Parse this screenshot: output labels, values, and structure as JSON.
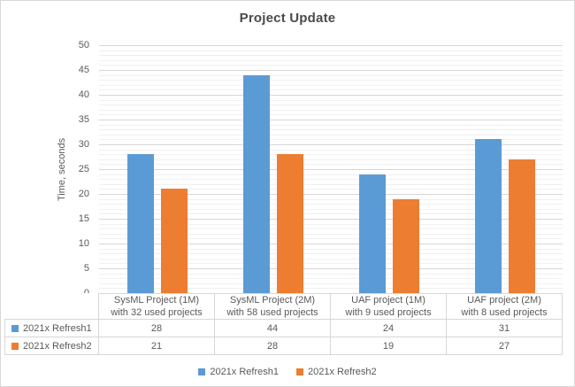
{
  "chart_data": {
    "type": "bar",
    "title": "Project Update",
    "ylabel": "Time, seconds",
    "xlabel": "",
    "ylim": [
      0,
      50
    ],
    "major_unit": 5,
    "minor_unit": 1,
    "y_ticks": [
      0,
      5,
      10,
      15,
      20,
      25,
      30,
      35,
      40,
      45,
      50
    ],
    "grid": "on",
    "legend_position": "bottom",
    "data_table": "shown with legend keys",
    "categories": [
      "SysML Project (1M)\nwith 32 used projects",
      "SysML Project (2M)\nwith 58 used projects",
      "UAF project (1M)\nwith 9 used projects",
      "UAF project (2M)\nwith 8 used projects"
    ],
    "series": [
      {
        "name": "2021x Refresh1",
        "color": "#5B9BD5",
        "values": [
          28,
          44,
          24,
          31
        ]
      },
      {
        "name": "2021x Refresh2",
        "color": "#ED7D31",
        "values": [
          21,
          28,
          19,
          27
        ]
      }
    ]
  },
  "colors": {
    "series1": "#5B9BD5",
    "series2": "#ED7D31",
    "gridline_major": "#d6d6d6",
    "gridline_minor": "#f0f0f0",
    "table_border": "#d7d7d7",
    "text": "#595959",
    "title_text": "#4a4a4a",
    "background": "#ffffff"
  }
}
